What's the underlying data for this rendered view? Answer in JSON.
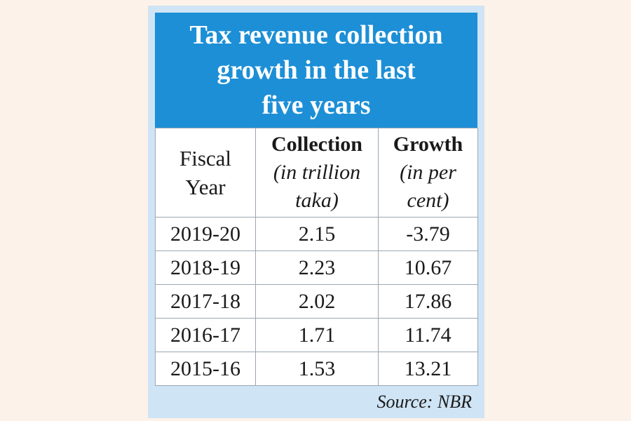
{
  "title": {
    "line1": "Tax revenue collection",
    "line2": "growth in the last",
    "line3": "five years"
  },
  "table": {
    "headers": {
      "year": {
        "line1": "Fiscal",
        "line2": "Year"
      },
      "collection": {
        "bold": "Collection",
        "unit1": "(in trillion",
        "unit2": "taka)"
      },
      "growth": {
        "bold": "Growth",
        "unit1": "(in per",
        "unit2": "cent)"
      }
    },
    "rows": [
      {
        "year": "2019-20",
        "collection": "2.15",
        "growth": "-3.79"
      },
      {
        "year": "2018-19",
        "collection": "2.23",
        "growth": "10.67"
      },
      {
        "year": "2017-18",
        "collection": "2.02",
        "growth": "17.86"
      },
      {
        "year": "2016-17",
        "collection": "1.71",
        "growth": "11.74"
      },
      {
        "year": "2015-16",
        "collection": "1.53",
        "growth": "13.21"
      }
    ]
  },
  "source": "Source: NBR",
  "colors": {
    "page_background": "#fdf2e9",
    "card_background": "#cfe4f4",
    "title_background": "#1d8fd6",
    "title_text": "#ffffff"
  }
}
